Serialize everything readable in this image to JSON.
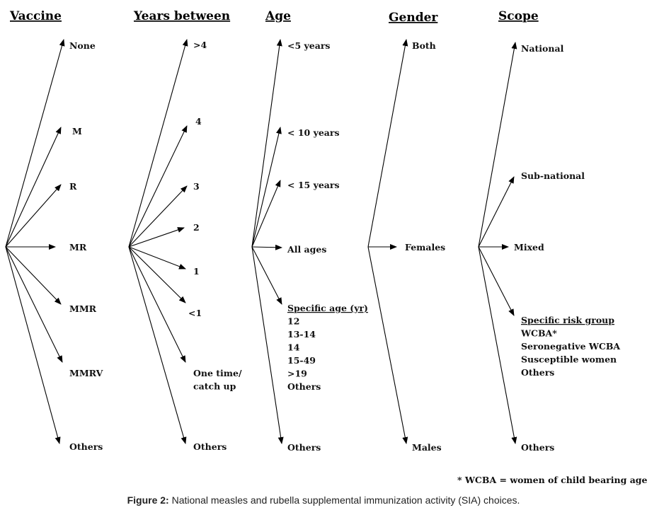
{
  "columns": [
    {
      "id": "vaccine",
      "header": "Vaccine",
      "items": [
        {
          "lines": [
            "None"
          ]
        },
        {
          "lines": [
            "M"
          ]
        },
        {
          "lines": [
            "R"
          ]
        },
        {
          "lines": [
            "MR"
          ]
        },
        {
          "lines": [
            "MMR"
          ]
        },
        {
          "lines": [
            "MMRV"
          ]
        },
        {
          "lines": [
            "Others"
          ]
        }
      ]
    },
    {
      "id": "years-between",
      "header": "Years between",
      "items": [
        {
          "lines": [
            ">4"
          ]
        },
        {
          "lines": [
            "4"
          ]
        },
        {
          "lines": [
            "3"
          ]
        },
        {
          "lines": [
            "2"
          ]
        },
        {
          "lines": [
            "1"
          ]
        },
        {
          "lines": [
            "<1"
          ]
        },
        {
          "lines": [
            "One time/",
            "catch up"
          ]
        },
        {
          "lines": [
            "Others"
          ]
        }
      ]
    },
    {
      "id": "age",
      "header": "Age",
      "items": [
        {
          "lines": [
            "<5 years"
          ]
        },
        {
          "lines": [
            "< 10 years"
          ]
        },
        {
          "lines": [
            "< 15 years"
          ]
        },
        {
          "lines": [
            "All ages"
          ]
        },
        {
          "lines": [
            "Specific age (yr)",
            "12",
            "13-14",
            "14",
            "15-49",
            ">19",
            "Others"
          ],
          "underline_first": true
        },
        {
          "lines": [
            "Others"
          ]
        }
      ]
    },
    {
      "id": "gender",
      "header": "Gender",
      "items": [
        {
          "lines": [
            "Both"
          ]
        },
        {
          "lines": [
            "Females"
          ]
        },
        {
          "lines": [
            "Males"
          ]
        }
      ]
    },
    {
      "id": "scope",
      "header": "Scope",
      "items": [
        {
          "lines": [
            "National"
          ]
        },
        {
          "lines": [
            "Sub-national"
          ]
        },
        {
          "lines": [
            "Mixed"
          ]
        },
        {
          "lines": [
            "Specific risk group",
            "WCBA*",
            "Seronegative WCBA",
            "Susceptible women",
            "Others"
          ],
          "underline_first": true
        },
        {
          "lines": [
            "Others"
          ]
        }
      ]
    }
  ],
  "footnote": "* WCBA = women of child bearing age",
  "caption": {
    "label": "Figure 2:",
    "text": " National measles and rubella supplemental immunization activity (SIA) choices."
  }
}
